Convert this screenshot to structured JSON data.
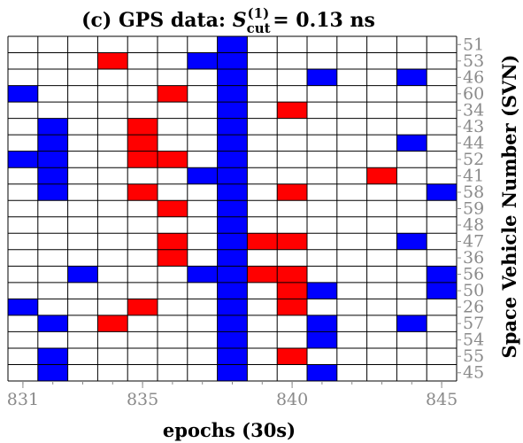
{
  "chart_data": {
    "type": "heatmap",
    "title": {
      "prefix": "(c) GPS data: ",
      "symbol": "S",
      "superscript": "(1)",
      "subscript": "cut",
      "suffix": "= 0.13 ns"
    },
    "xlabel": "epochs (30s)",
    "ylabel": "Space Vehicle Number (SVN)",
    "x_epochs": [
      831,
      832,
      833,
      834,
      835,
      836,
      837,
      838,
      839,
      840,
      841,
      842,
      843,
      844,
      845
    ],
    "x_ticks": [
      "831",
      "835",
      "840",
      "845"
    ],
    "y_labels": [
      "51",
      "53",
      "46",
      "60",
      "34",
      "43",
      "44",
      "52",
      "41",
      "58",
      "59",
      "48",
      "47",
      "36",
      "56",
      "50",
      "26",
      "57",
      "54",
      "55",
      "45"
    ],
    "grid": true,
    "colors": {
      "blue": "#0000ff",
      "red": "#ff0000",
      "empty": "#ffffff",
      "grid": "#000000",
      "ticks": "#8a8a8a"
    },
    "cells": [
      {
        "svn": "53",
        "epoch": 834,
        "color": "red"
      },
      {
        "svn": "53",
        "epoch": 837,
        "color": "blue"
      },
      {
        "svn": "46",
        "epoch": 841,
        "color": "blue"
      },
      {
        "svn": "46",
        "epoch": 844,
        "color": "blue"
      },
      {
        "svn": "60",
        "epoch": 831,
        "color": "blue"
      },
      {
        "svn": "60",
        "epoch": 836,
        "color": "red"
      },
      {
        "svn": "34",
        "epoch": 840,
        "color": "red"
      },
      {
        "svn": "43",
        "epoch": 832,
        "color": "blue"
      },
      {
        "svn": "43",
        "epoch": 835,
        "color": "red"
      },
      {
        "svn": "44",
        "epoch": 832,
        "color": "blue"
      },
      {
        "svn": "44",
        "epoch": 835,
        "color": "red"
      },
      {
        "svn": "44",
        "epoch": 844,
        "color": "blue"
      },
      {
        "svn": "52",
        "epoch": 831,
        "color": "blue"
      },
      {
        "svn": "52",
        "epoch": 832,
        "color": "blue"
      },
      {
        "svn": "52",
        "epoch": 835,
        "color": "red"
      },
      {
        "svn": "52",
        "epoch": 836,
        "color": "red"
      },
      {
        "svn": "41",
        "epoch": 832,
        "color": "blue"
      },
      {
        "svn": "41",
        "epoch": 837,
        "color": "blue"
      },
      {
        "svn": "41",
        "epoch": 843,
        "color": "red"
      },
      {
        "svn": "58",
        "epoch": 832,
        "color": "blue"
      },
      {
        "svn": "58",
        "epoch": 835,
        "color": "red"
      },
      {
        "svn": "58",
        "epoch": 840,
        "color": "red"
      },
      {
        "svn": "58",
        "epoch": 845,
        "color": "blue"
      },
      {
        "svn": "59",
        "epoch": 836,
        "color": "red"
      },
      {
        "svn": "47",
        "epoch": 836,
        "color": "red"
      },
      {
        "svn": "47",
        "epoch": 839,
        "color": "red"
      },
      {
        "svn": "47",
        "epoch": 840,
        "color": "red"
      },
      {
        "svn": "47",
        "epoch": 844,
        "color": "blue"
      },
      {
        "svn": "36",
        "epoch": 836,
        "color": "red"
      },
      {
        "svn": "56",
        "epoch": 833,
        "color": "blue"
      },
      {
        "svn": "56",
        "epoch": 837,
        "color": "blue"
      },
      {
        "svn": "56",
        "epoch": 839,
        "color": "red"
      },
      {
        "svn": "56",
        "epoch": 840,
        "color": "red"
      },
      {
        "svn": "56",
        "epoch": 845,
        "color": "blue"
      },
      {
        "svn": "50",
        "epoch": 840,
        "color": "red"
      },
      {
        "svn": "50",
        "epoch": 841,
        "color": "blue"
      },
      {
        "svn": "50",
        "epoch": 845,
        "color": "blue"
      },
      {
        "svn": "26",
        "epoch": 831,
        "color": "blue"
      },
      {
        "svn": "26",
        "epoch": 835,
        "color": "red"
      },
      {
        "svn": "26",
        "epoch": 840,
        "color": "red"
      },
      {
        "svn": "57",
        "epoch": 832,
        "color": "blue"
      },
      {
        "svn": "57",
        "epoch": 834,
        "color": "red"
      },
      {
        "svn": "57",
        "epoch": 841,
        "color": "blue"
      },
      {
        "svn": "57",
        "epoch": 844,
        "color": "blue"
      },
      {
        "svn": "54",
        "epoch": 841,
        "color": "blue"
      },
      {
        "svn": "55",
        "epoch": 832,
        "color": "blue"
      },
      {
        "svn": "55",
        "epoch": 840,
        "color": "red"
      },
      {
        "svn": "45",
        "epoch": 832,
        "color": "blue"
      },
      {
        "svn": "45",
        "epoch": 841,
        "color": "blue"
      }
    ],
    "full_columns": [
      {
        "epoch": 838,
        "color": "blue"
      }
    ]
  }
}
